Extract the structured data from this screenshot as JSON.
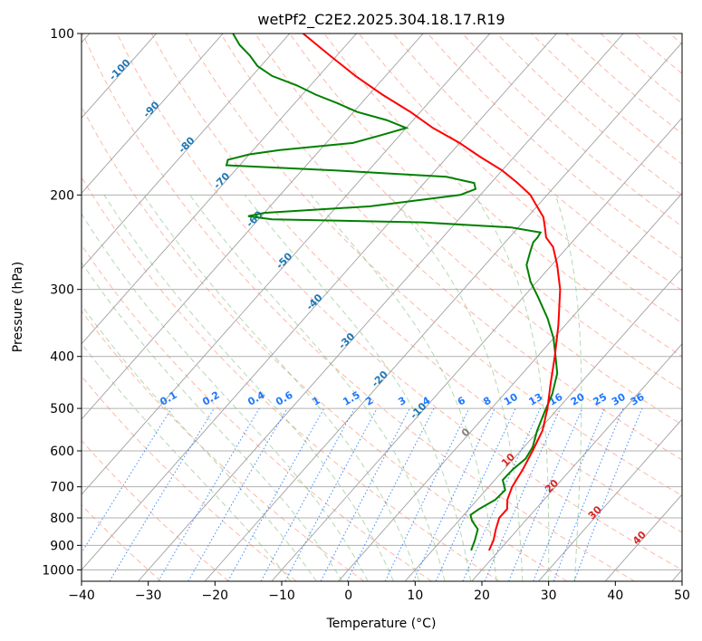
{
  "chart_data": {
    "type": "line",
    "title": "wetPf2_C2E2.2025.304.18.17.R19",
    "xlabel": "Temperature (°C)",
    "ylabel": "Pressure (hPa)",
    "xlim": [
      -40,
      50
    ],
    "ylim": [
      1050,
      100
    ],
    "y_scale": "log",
    "grid": true,
    "x_ticks": [
      "−40",
      "−30",
      "−20",
      "−10",
      "0",
      "10",
      "20",
      "30",
      "40",
      "50"
    ],
    "x_tick_values": [
      -40,
      -30,
      -20,
      -10,
      0,
      10,
      20,
      30,
      40,
      50
    ],
    "y_ticks": [
      "100",
      "200",
      "300",
      "400",
      "500",
      "600",
      "700",
      "800",
      "900",
      "1000"
    ],
    "y_tick_values": [
      100,
      200,
      300,
      400,
      500,
      600,
      700,
      800,
      900,
      1000
    ],
    "skew_per_decade_log_p": 71.2,
    "colors": {
      "temperature": "#ff0000",
      "dewpoint": "#008000",
      "isotherm": "#a0a0a0",
      "dry_adiabat": "#fa8060",
      "moist_adiabat": "#80c080",
      "mixing_ratio": "#1e78ff",
      "isotherm_label": "#1f78b4",
      "warm_isotherm_label": "#d62728"
    },
    "series": [
      {
        "key": "temperature",
        "p": [
          920,
          880,
          840,
          800,
          770,
          740,
          700,
          650,
          600,
          550,
          500,
          450,
          400,
          350,
          300,
          270,
          250,
          240,
          230,
          220,
          210,
          200,
          190,
          180,
          170,
          160,
          150,
          140,
          130,
          120,
          110,
          100
        ],
        "t": [
          18.5,
          17.8,
          16.7,
          15.7,
          15.7,
          14.5,
          13.5,
          12.8,
          11.8,
          10.6,
          8.4,
          5.6,
          2.6,
          -1.0,
          -5.5,
          -9.2,
          -12.2,
          -14.5,
          -16.0,
          -17.6,
          -20.0,
          -22.5,
          -26.0,
          -30.0,
          -35.0,
          -40.0,
          -46.0,
          -51.5,
          -58.0,
          -64.5,
          -71.0,
          -78.0
        ]
      },
      {
        "key": "dewpoint",
        "p": [
          920,
          880,
          840,
          810,
          790,
          770,
          740,
          710,
          680,
          650,
          620,
          590,
          550,
          510,
          470,
          430,
          400,
          370,
          340,
          310,
          290,
          270,
          255,
          245,
          240,
          235,
          230,
          225,
          222,
          219,
          216,
          210,
          200,
          195,
          190,
          185,
          180,
          176,
          172,
          168,
          165,
          160,
          155,
          150,
          145,
          140,
          135,
          130,
          125,
          120,
          115,
          110,
          105,
          100
        ],
        "t": [
          15.8,
          15.0,
          14.0,
          12.0,
          11.0,
          11.5,
          12.7,
          12.9,
          11.2,
          11.3,
          11.8,
          11.3,
          9.8,
          8.5,
          7.2,
          5.2,
          2.7,
          0.0,
          -3.5,
          -7.8,
          -11.0,
          -13.8,
          -15.0,
          -15.8,
          -15.8,
          -16.0,
          -21.0,
          -35.0,
          -58.0,
          -62.0,
          -60.0,
          -45.0,
          -33.0,
          -31.5,
          -32.5,
          -37.5,
          -55.0,
          -72.0,
          -72.5,
          -70.0,
          -66.0,
          -56.0,
          -53.0,
          -50.0,
          -54.0,
          -59.5,
          -63.5,
          -68.0,
          -72.0,
          -77.0,
          -80.5,
          -83.0,
          -86.0,
          -88.5
        ]
      }
    ],
    "isotherm_labels": {
      "cold": [
        "-100",
        "-90",
        "-80",
        "-70",
        "-60",
        "-50",
        "-40",
        "-30",
        "-20",
        "-10",
        "0"
      ],
      "cold_values": [
        -100,
        -90,
        -80,
        -70,
        -60,
        -50,
        -40,
        -30,
        -20,
        -10,
        0
      ],
      "warm": [
        "10",
        "20",
        "30",
        "40"
      ],
      "warm_values": [
        10,
        20,
        30,
        40
      ]
    },
    "mixing_ratio_labels": [
      "0.1",
      "0.2",
      "0.4",
      "0.6",
      "1",
      "1.5",
      "2",
      "3",
      "4",
      "6",
      "8",
      "10",
      "13",
      "16",
      "20",
      "25",
      "30",
      "36"
    ],
    "mixing_ratio_values": [
      0.1,
      0.2,
      0.4,
      0.6,
      1,
      1.5,
      2,
      3,
      4,
      6,
      8,
      10,
      13,
      16,
      20,
      25,
      30,
      36
    ]
  }
}
